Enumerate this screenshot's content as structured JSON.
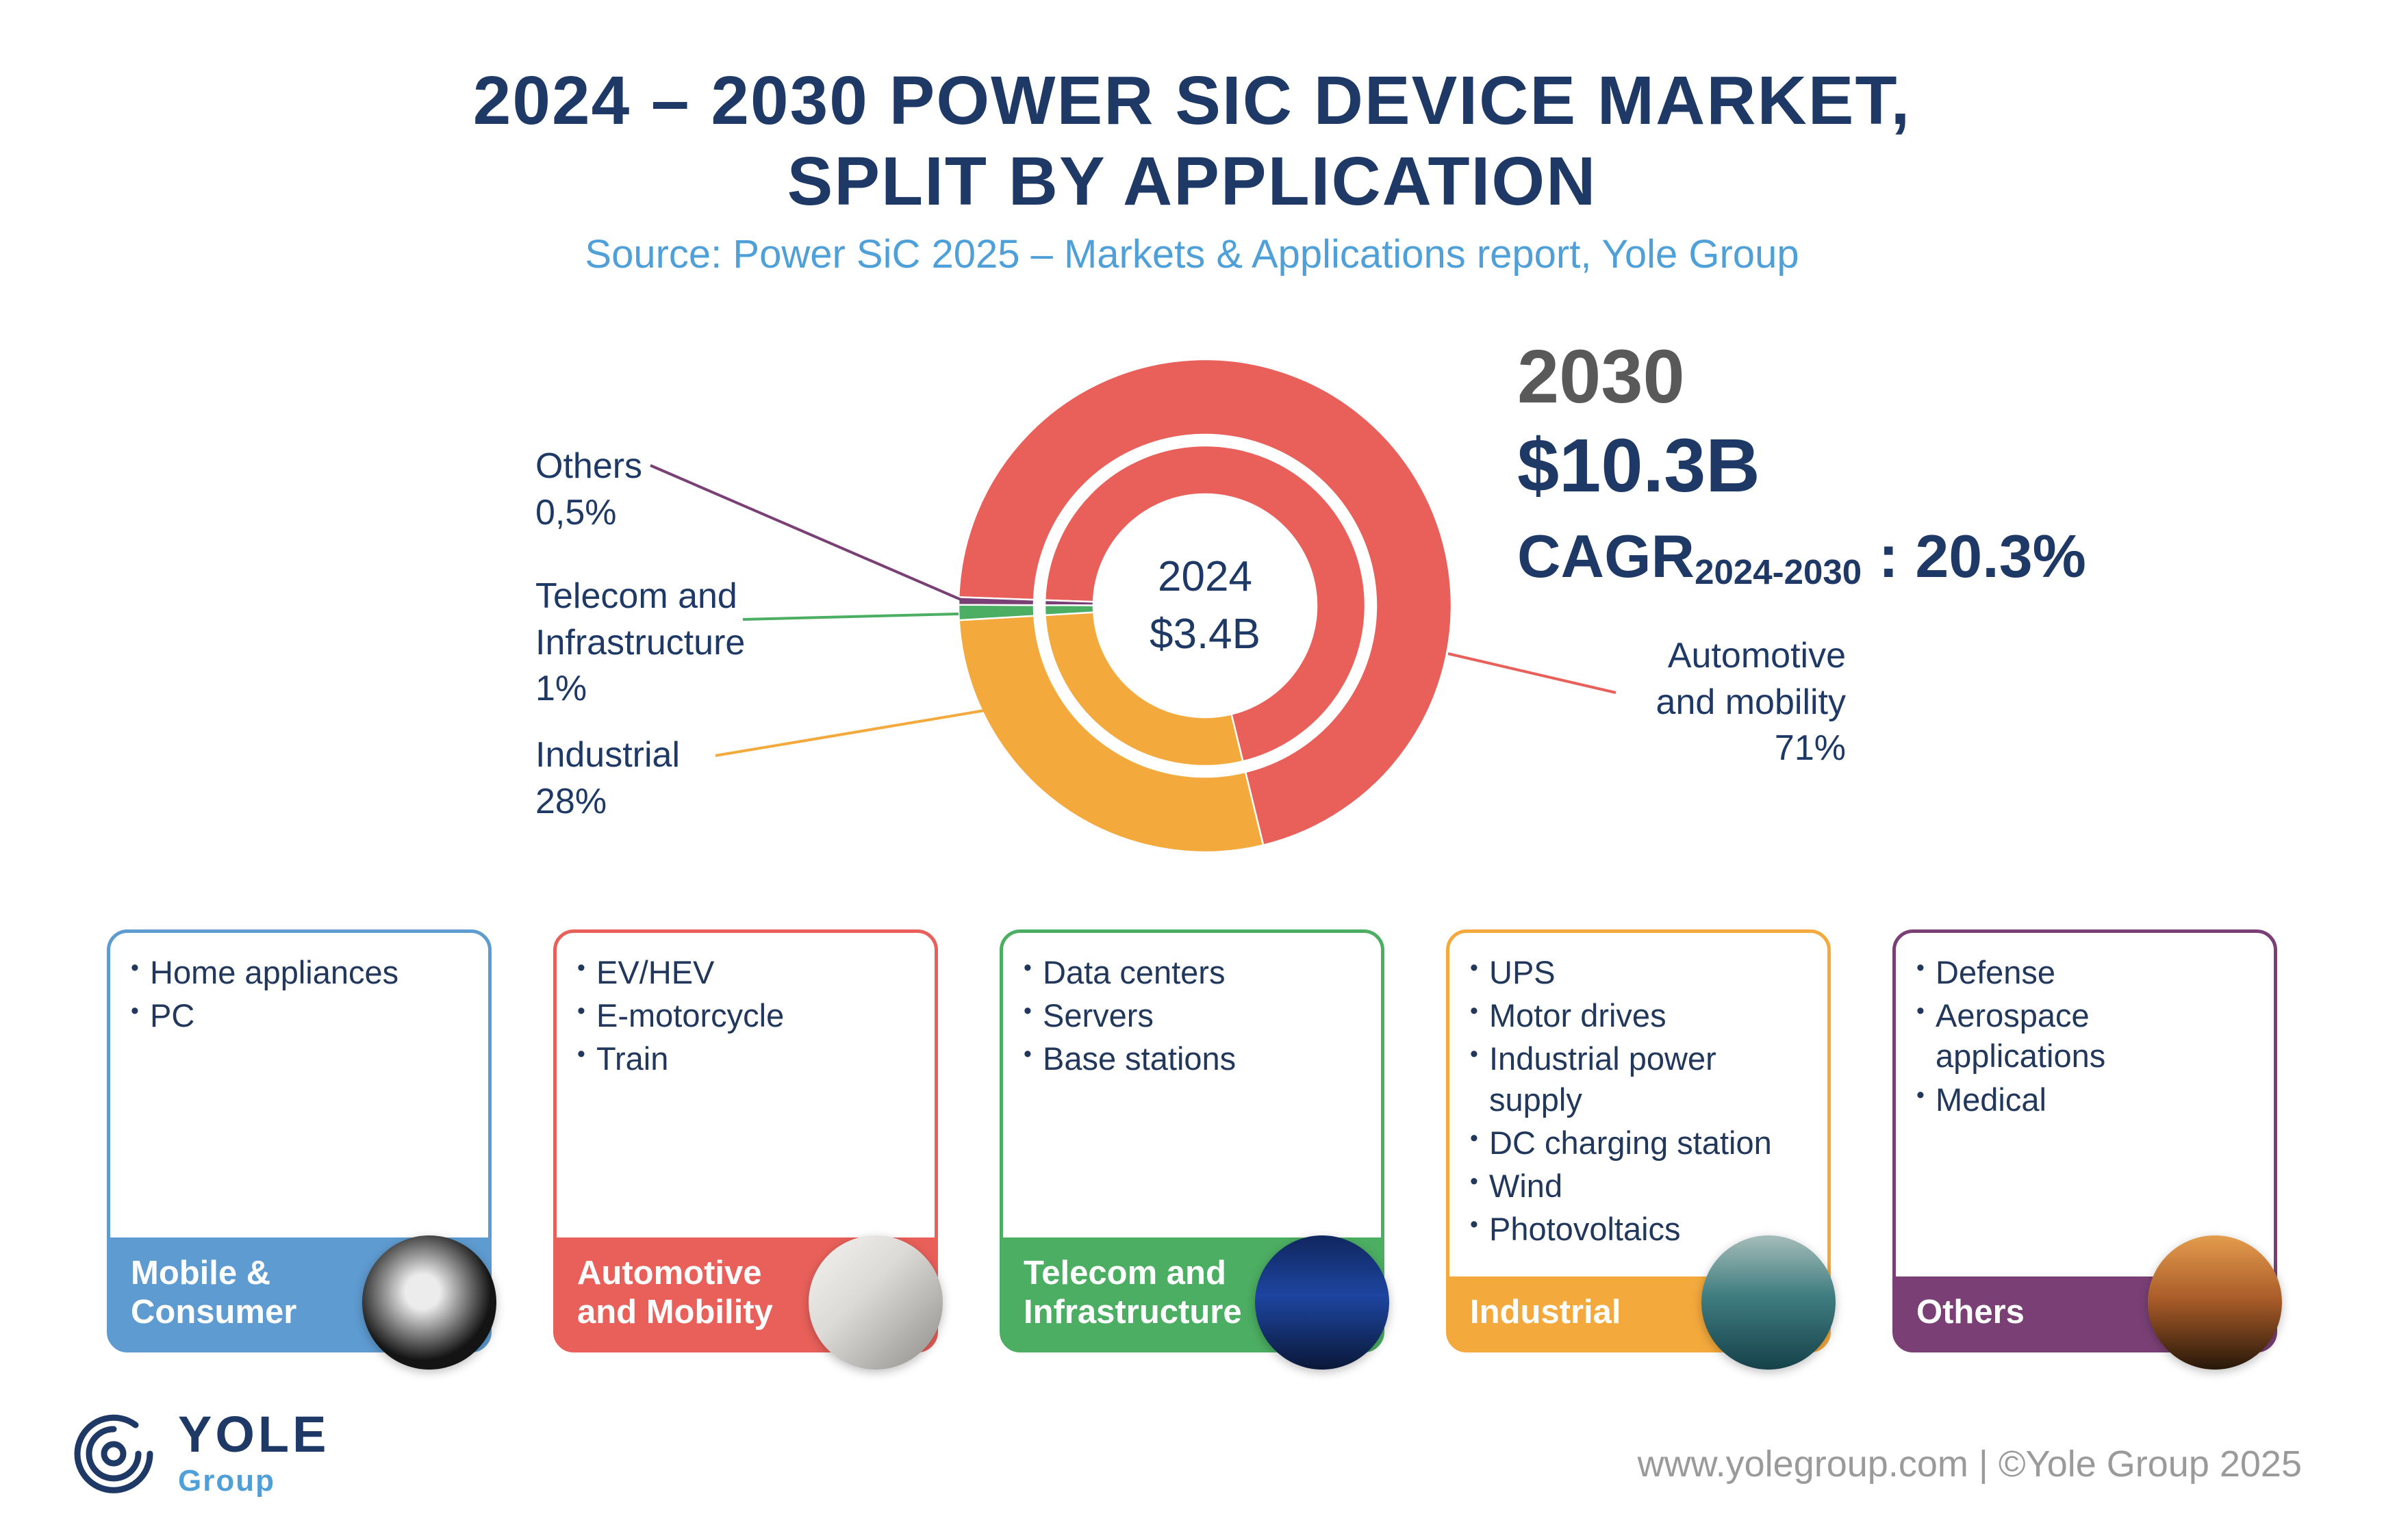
{
  "header": {
    "title": "2024 – 2030 POWER SIC DEVICE MARKET,\nSPLIT BY APPLICATION",
    "source": "Source: Power SiC 2025 – Markets & Applications report, Yole Group"
  },
  "chart_data": {
    "type": "pie",
    "subtype": "double-ring-donut",
    "title": "2024 – 2030 Power SiC device market, split by application",
    "units": "percent share of market value",
    "legend_position": "callouts-and-category-cards",
    "center_label": {
      "year": "2024",
      "value": "$3.4B"
    },
    "right_panel": {
      "year": "2030",
      "value": "$10.3B",
      "cagr_prefix": "CAGR",
      "cagr_subscript": "2024-2030",
      "cagr_value": " : 20.3%"
    },
    "segments": [
      {
        "label": "Automotive and mobility",
        "color": "#E9605A"
      },
      {
        "label": "Industrial",
        "color": "#F4A93C"
      },
      {
        "label": "Telecom and Infrastructure",
        "color": "#4CAE62"
      },
      {
        "label": "Others",
        "color": "#7A4075"
      }
    ],
    "rings": [
      {
        "year": "2024",
        "position": "inner",
        "total_label": "$3.4B",
        "values": [
          71,
          28,
          1,
          0.5
        ],
        "estimated": true
      },
      {
        "year": "2030",
        "position": "outer",
        "total_label": "$10.3B",
        "values": [
          71,
          28,
          1,
          0.5
        ]
      }
    ],
    "callouts": [
      {
        "text": "Others\n0,5%",
        "segment": "Others"
      },
      {
        "text": "Telecom and\nInfrastructure\n1%",
        "segment": "Telecom and Infrastructure"
      },
      {
        "text": "Industrial\n28%",
        "segment": "Industrial"
      },
      {
        "text": "Automotive\nand mobility\n71%",
        "segment": "Automotive and mobility"
      }
    ]
  },
  "categories": [
    {
      "name": "Mobile &\nConsumer",
      "color": "#5E9BD1",
      "items": [
        "Home appliances",
        "PC"
      ],
      "photo": "charger-plug-photo"
    },
    {
      "name": "Automotive\nand Mobility",
      "color": "#E9605A",
      "items": [
        "EV/HEV",
        "E-motorcycle",
        "Train"
      ],
      "photo": "electric-car-photo"
    },
    {
      "name": "Telecom and\nInfrastructure",
      "color": "#4CAE62",
      "items": [
        "Data centers",
        "Servers",
        "Base stations"
      ],
      "photo": "data-center-photo"
    },
    {
      "name": "Industrial",
      "color": "#F4A93C",
      "items": [
        "UPS",
        "Motor drives",
        "Industrial power supply",
        "DC charging station",
        "Wind",
        "Photovoltaics"
      ],
      "photo": "industrial-plant-photo"
    },
    {
      "name": "Others",
      "color": "#7A4075",
      "items": [
        "Defense",
        "Aerospace applications",
        "Medical"
      ],
      "photo": "fighter-jets-photo"
    }
  ],
  "footer": {
    "logo_title": "YOLE",
    "logo_subtitle": "Group",
    "credit": "www.yolegroup.com | ©Yole Group 2025"
  }
}
